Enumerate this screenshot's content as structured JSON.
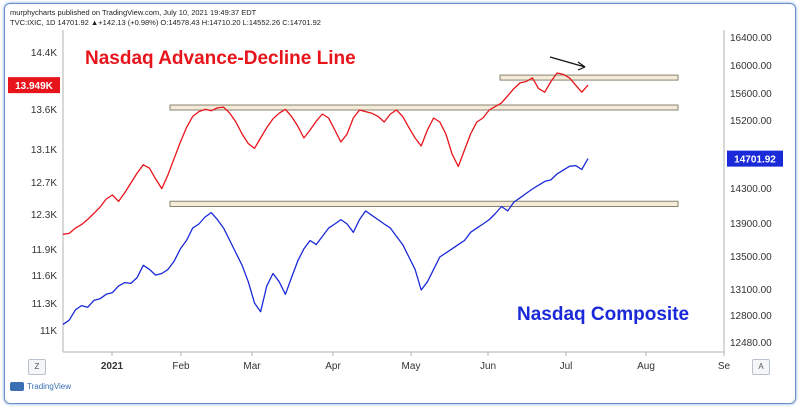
{
  "header": {
    "line1": "murphycharts published on TradingView.com, July 10, 2021 19:49:37 EDT",
    "line2": "TVC:IXIC, 1D 14701.92 ▲+142.13 (+0.98%) O:14578.43 H:14710.20 L:14552.26 C:14701.92"
  },
  "footer": {
    "brand": "TradingView"
  },
  "buttons": {
    "left": "Z",
    "right": "A"
  },
  "colors": {
    "ad_line": "#e8141b",
    "composite": "#1a2ad8",
    "zone_fill": "#f4ecd9",
    "zone_border": "#8a8270"
  },
  "chart_data": {
    "type": "line",
    "annotations": {
      "ad_title": "Nasdaq Advance-Decline Line",
      "composite_title": "Nasdaq Composite"
    },
    "x_axis": {
      "tick_labels": [
        "2021",
        "Feb",
        "Mar",
        "Apr",
        "May",
        "Jun",
        "Jul",
        "Aug",
        "Se"
      ]
    },
    "left_axis": {
      "tick_labels": [
        "14.4K",
        "13.6K",
        "13.1K",
        "12.7K",
        "12.3K",
        "11.9K",
        "11.6K",
        "11.3K",
        "11K"
      ],
      "last_value_label": "13.949K"
    },
    "right_axis": {
      "tick_labels": [
        "16400.00",
        "16000.00",
        "15600.00",
        "15200.00",
        "14300.00",
        "13900.00",
        "13500.00",
        "13100.00",
        "12800.00",
        "12480.00"
      ],
      "last_value_label": "14701.92"
    },
    "series": [
      {
        "name": "Nasdaq Advance-Decline Line",
        "axis": "left",
        "values": [
          12080,
          12090,
          12150,
          12190,
          12250,
          12320,
          12400,
          12500,
          12550,
          12470,
          12580,
          12700,
          12820,
          12920,
          12880,
          12750,
          12630,
          12800,
          13000,
          13200,
          13380,
          13520,
          13580,
          13610,
          13590,
          13630,
          13640,
          13560,
          13450,
          13300,
          13180,
          13120,
          13250,
          13380,
          13490,
          13560,
          13610,
          13520,
          13400,
          13250,
          13350,
          13460,
          13550,
          13500,
          13350,
          13200,
          13300,
          13500,
          13600,
          13580,
          13560,
          13520,
          13450,
          13550,
          13600,
          13520,
          13380,
          13250,
          13150,
          13350,
          13500,
          13450,
          13300,
          13050,
          12900,
          13100,
          13300,
          13450,
          13500,
          13600,
          13650,
          13700,
          13800,
          13900,
          13980,
          14000,
          14050,
          13900,
          13850,
          14000,
          14120,
          14100,
          14050,
          13950,
          13850,
          13949
        ]
      },
      {
        "name": "Nasdaq Composite",
        "axis": "right",
        "values": [
          12700,
          12750,
          12870,
          12920,
          12900,
          12980,
          13000,
          13050,
          13070,
          13150,
          13190,
          13180,
          13250,
          13400,
          13350,
          13280,
          13300,
          13350,
          13450,
          13600,
          13700,
          13850,
          13900,
          13980,
          14030,
          13950,
          13850,
          13700,
          13550,
          13400,
          13200,
          12950,
          12850,
          13150,
          13300,
          13200,
          13050,
          13250,
          13450,
          13600,
          13700,
          13650,
          13750,
          13850,
          13900,
          13950,
          13900,
          13800,
          13950,
          14050,
          14000,
          13950,
          13900,
          13850,
          13750,
          13650,
          13500,
          13350,
          13100,
          13200,
          13350,
          13500,
          13550,
          13600,
          13650,
          13700,
          13800,
          13850,
          13900,
          13950,
          14020,
          14100,
          14050,
          14150,
          14200,
          14250,
          14300,
          14350,
          14400,
          14420,
          14500,
          14550,
          14600,
          14610,
          14560,
          14701.92
        ]
      }
    ],
    "reference_zones": [
      {
        "series": "Nasdaq Advance-Decline Line",
        "low": 14030,
        "high": 14090,
        "range": "Jun–Jul"
      },
      {
        "series": "Nasdaq Advance-Decline Line",
        "low": 13610,
        "high": 13670,
        "range": "Feb–Jul"
      },
      {
        "series": "Nasdaq Composite",
        "low": 14100,
        "high": 14160,
        "range": "Feb–Jul"
      }
    ],
    "grid": false,
    "legend": "none"
  }
}
